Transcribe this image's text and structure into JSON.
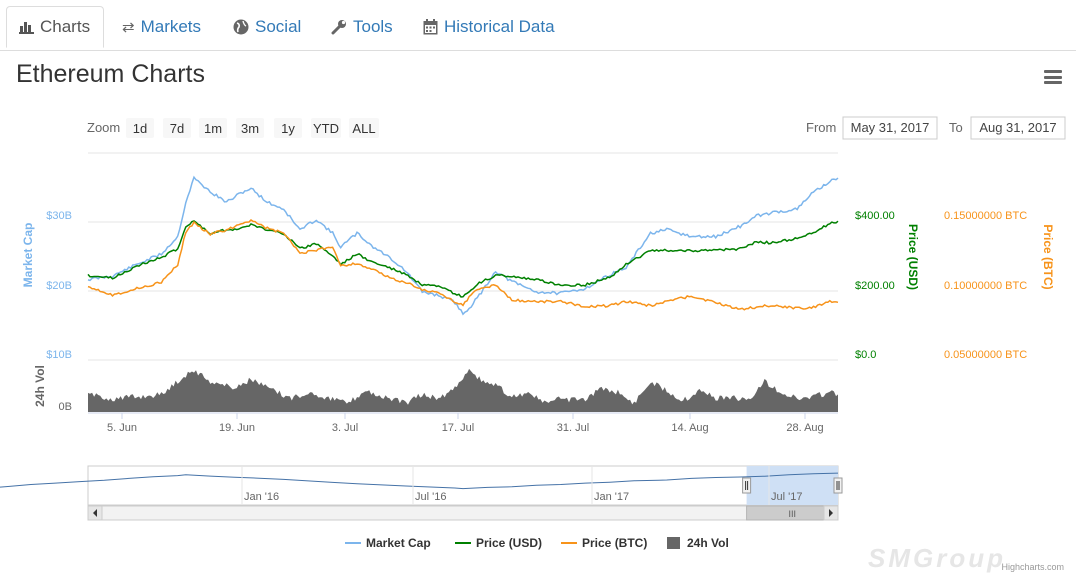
{
  "tabs": [
    {
      "label": "Charts",
      "icon": "bar-chart-icon",
      "active": true
    },
    {
      "label": "Markets",
      "icon": "exchange-icon",
      "active": false
    },
    {
      "label": "Social",
      "icon": "globe-icon",
      "active": false
    },
    {
      "label": "Tools",
      "icon": "wrench-icon",
      "active": false
    },
    {
      "label": "Historical Data",
      "icon": "calendar-icon",
      "active": false
    }
  ],
  "page_title": "Ethereum Charts",
  "menu_icon": "hamburger-menu-icon",
  "range_selector": {
    "zoom_label": "Zoom",
    "buttons": [
      "1d",
      "7d",
      "1m",
      "3m",
      "1y",
      "YTD",
      "ALL"
    ],
    "from_label": "From",
    "from_value": "May 31, 2017",
    "to_label": "To",
    "to_value": "Aug 31, 2017"
  },
  "credits": "Highcharts.com",
  "watermark": "SMGroup",
  "colors": {
    "market_cap": "#7cb5ec",
    "price_usd": "#008000",
    "price_btc": "#f7931a",
    "volume": "#666666",
    "tab_link": "#337ab7",
    "navigator_mask": "#cfe0f5"
  },
  "chart_data": {
    "type": "line",
    "x_range": [
      "2017-05-31",
      "2017-08-31"
    ],
    "x_ticks": [
      "5. Jun",
      "19. Jun",
      "3. Jul",
      "17. Jul",
      "31. Jul",
      "14. Aug",
      "28. Aug"
    ],
    "grid": true,
    "legend_position": "bottom-center",
    "axes": {
      "market_cap": {
        "title": "Market Cap",
        "ticks": [
          "$10B",
          "$20B",
          "$30B"
        ],
        "range": [
          10,
          32
        ]
      },
      "price_usd": {
        "title": "Price (USD)",
        "ticks": [
          "$0.0",
          "$200.00",
          "$400.00"
        ],
        "range": [
          0,
          440
        ]
      },
      "price_btc": {
        "title": "Price (BTC)",
        "ticks": [
          "0.05000000 BTC",
          "0.10000000 BTC",
          "0.15000000 BTC"
        ],
        "range": [
          0.05,
          0.16
        ]
      },
      "volume": {
        "title": "24h Vol",
        "ticks": [
          "0B"
        ]
      }
    },
    "series": [
      {
        "name": "Market Cap",
        "unit": "B USD",
        "points": [
          [
            "2017-05-31",
            20.8
          ],
          [
            "2017-06-03",
            21.3
          ],
          [
            "2017-06-06",
            23.0
          ],
          [
            "2017-06-09",
            24.5
          ],
          [
            "2017-06-11",
            27.0
          ],
          [
            "2017-06-12",
            32.0
          ],
          [
            "2017-06-13",
            35.5
          ],
          [
            "2017-06-15",
            33.5
          ],
          [
            "2017-06-17",
            32.0
          ],
          [
            "2017-06-19",
            33.5
          ],
          [
            "2017-06-20",
            34.0
          ],
          [
            "2017-06-22",
            32.0
          ],
          [
            "2017-06-24",
            31.0
          ],
          [
            "2017-06-26",
            28.0
          ],
          [
            "2017-06-28",
            29.5
          ],
          [
            "2017-06-30",
            27.5
          ],
          [
            "2017-07-01",
            25.5
          ],
          [
            "2017-07-03",
            27.5
          ],
          [
            "2017-07-05",
            25.5
          ],
          [
            "2017-07-07",
            24.0
          ],
          [
            "2017-07-09",
            22.0
          ],
          [
            "2017-07-11",
            19.0
          ],
          [
            "2017-07-13",
            18.5
          ],
          [
            "2017-07-15",
            17.5
          ],
          [
            "2017-07-16",
            15.8
          ],
          [
            "2017-07-17",
            17.0
          ],
          [
            "2017-07-18",
            18.5
          ],
          [
            "2017-07-20",
            22.0
          ],
          [
            "2017-07-22",
            20.5
          ],
          [
            "2017-07-25",
            19.0
          ],
          [
            "2017-07-28",
            18.8
          ],
          [
            "2017-07-31",
            19.5
          ],
          [
            "2017-08-03",
            21.5
          ],
          [
            "2017-08-05",
            22.5
          ],
          [
            "2017-08-08",
            27.5
          ],
          [
            "2017-08-10",
            28.0
          ],
          [
            "2017-08-13",
            27.0
          ],
          [
            "2017-08-16",
            27.0
          ],
          [
            "2017-08-19",
            28.5
          ],
          [
            "2017-08-21",
            30.0
          ],
          [
            "2017-08-23",
            30.5
          ],
          [
            "2017-08-26",
            31.0
          ],
          [
            "2017-08-28",
            33.5
          ],
          [
            "2017-08-30",
            35.0
          ],
          [
            "2017-08-31",
            35.5
          ]
        ]
      },
      {
        "name": "Price (USD)",
        "unit": "USD",
        "points": [
          [
            "2017-05-31",
            228
          ],
          [
            "2017-06-03",
            220
          ],
          [
            "2017-06-06",
            255
          ],
          [
            "2017-06-09",
            280
          ],
          [
            "2017-06-11",
            305
          ],
          [
            "2017-06-12",
            370
          ],
          [
            "2017-06-13",
            385
          ],
          [
            "2017-06-15",
            350
          ],
          [
            "2017-06-17",
            360
          ],
          [
            "2017-06-19",
            365
          ],
          [
            "2017-06-20",
            375
          ],
          [
            "2017-06-22",
            360
          ],
          [
            "2017-06-24",
            350
          ],
          [
            "2017-06-26",
            305
          ],
          [
            "2017-06-28",
            320
          ],
          [
            "2017-06-30",
            285
          ],
          [
            "2017-07-01",
            260
          ],
          [
            "2017-07-03",
            290
          ],
          [
            "2017-07-05",
            265
          ],
          [
            "2017-07-07",
            250
          ],
          [
            "2017-07-09",
            230
          ],
          [
            "2017-07-11",
            200
          ],
          [
            "2017-07-13",
            195
          ],
          [
            "2017-07-15",
            175
          ],
          [
            "2017-07-16",
            165
          ],
          [
            "2017-07-17",
            185
          ],
          [
            "2017-07-18",
            205
          ],
          [
            "2017-07-20",
            228
          ],
          [
            "2017-07-22",
            225
          ],
          [
            "2017-07-25",
            215
          ],
          [
            "2017-07-28",
            200
          ],
          [
            "2017-07-31",
            200
          ],
          [
            "2017-08-03",
            222
          ],
          [
            "2017-08-05",
            260
          ],
          [
            "2017-08-08",
            300
          ],
          [
            "2017-08-10",
            300
          ],
          [
            "2017-08-13",
            300
          ],
          [
            "2017-08-16",
            300
          ],
          [
            "2017-08-19",
            305
          ],
          [
            "2017-08-21",
            325
          ],
          [
            "2017-08-23",
            322
          ],
          [
            "2017-08-26",
            335
          ],
          [
            "2017-08-28",
            350
          ],
          [
            "2017-08-30",
            380
          ],
          [
            "2017-08-31",
            385
          ]
        ]
      },
      {
        "name": "Price (BTC)",
        "unit": "BTC",
        "points": [
          [
            "2017-05-31",
            0.0992
          ],
          [
            "2017-06-03",
            0.0928
          ],
          [
            "2017-06-06",
            0.0974
          ],
          [
            "2017-06-09",
            0.102
          ],
          [
            "2017-06-11",
            0.1145
          ],
          [
            "2017-06-12",
            0.1385
          ],
          [
            "2017-06-13",
            0.145
          ],
          [
            "2017-06-15",
            0.137
          ],
          [
            "2017-06-17",
            0.1398
          ],
          [
            "2017-06-19",
            0.145
          ],
          [
            "2017-06-20",
            0.147
          ],
          [
            "2017-06-22",
            0.141
          ],
          [
            "2017-06-24",
            0.1375
          ],
          [
            "2017-06-26",
            0.123
          ],
          [
            "2017-06-28",
            0.125
          ],
          [
            "2017-06-30",
            0.128
          ],
          [
            "2017-07-01",
            0.114
          ],
          [
            "2017-07-03",
            0.1155
          ],
          [
            "2017-07-05",
            0.111
          ],
          [
            "2017-07-07",
            0.105
          ],
          [
            "2017-07-09",
            0.102
          ],
          [
            "2017-07-11",
            0.0965
          ],
          [
            "2017-07-13",
            0.094
          ],
          [
            "2017-07-15",
            0.088
          ],
          [
            "2017-07-16",
            0.0855
          ],
          [
            "2017-07-17",
            0.093
          ],
          [
            "2017-07-18",
            0.097
          ],
          [
            "2017-07-20",
            0.1
          ],
          [
            "2017-07-22",
            0.089
          ],
          [
            "2017-07-25",
            0.088
          ],
          [
            "2017-07-28",
            0.088
          ],
          [
            "2017-07-31",
            0.0845
          ],
          [
            "2017-08-03",
            0.085
          ],
          [
            "2017-08-05",
            0.088
          ],
          [
            "2017-08-08",
            0.085
          ],
          [
            "2017-08-10",
            0.088
          ],
          [
            "2017-08-13",
            0.092
          ],
          [
            "2017-08-16",
            0.087
          ],
          [
            "2017-08-19",
            0.0825
          ],
          [
            "2017-08-21",
            0.084
          ],
          [
            "2017-08-23",
            0.0855
          ],
          [
            "2017-08-26",
            0.083
          ],
          [
            "2017-08-28",
            0.084
          ],
          [
            "2017-08-30",
            0.088
          ],
          [
            "2017-08-31",
            0.0875
          ]
        ]
      },
      {
        "name": "24h Vol",
        "unit": "relative",
        "points": [
          [
            "2017-05-31",
            0.4
          ],
          [
            "2017-06-03",
            0.3
          ],
          [
            "2017-06-06",
            0.35
          ],
          [
            "2017-06-09",
            0.4
          ],
          [
            "2017-06-12",
            0.85
          ],
          [
            "2017-06-13",
            0.95
          ],
          [
            "2017-06-15",
            0.7
          ],
          [
            "2017-06-18",
            0.55
          ],
          [
            "2017-06-20",
            0.75
          ],
          [
            "2017-06-22",
            0.55
          ],
          [
            "2017-06-25",
            0.3
          ],
          [
            "2017-06-27",
            0.45
          ],
          [
            "2017-06-29",
            0.35
          ],
          [
            "2017-07-02",
            0.2
          ],
          [
            "2017-07-04",
            0.5
          ],
          [
            "2017-07-06",
            0.35
          ],
          [
            "2017-07-09",
            0.2
          ],
          [
            "2017-07-11",
            0.4
          ],
          [
            "2017-07-13",
            0.3
          ],
          [
            "2017-07-15",
            0.55
          ],
          [
            "2017-07-16",
            0.8
          ],
          [
            "2017-07-17",
            0.95
          ],
          [
            "2017-07-18",
            0.75
          ],
          [
            "2017-07-20",
            0.6
          ],
          [
            "2017-07-22",
            0.35
          ],
          [
            "2017-07-24",
            0.45
          ],
          [
            "2017-07-26",
            0.2
          ],
          [
            "2017-07-28",
            0.3
          ],
          [
            "2017-07-31",
            0.25
          ],
          [
            "2017-08-02",
            0.55
          ],
          [
            "2017-08-04",
            0.45
          ],
          [
            "2017-08-06",
            0.2
          ],
          [
            "2017-08-08",
            0.7
          ],
          [
            "2017-08-10",
            0.5
          ],
          [
            "2017-08-12",
            0.25
          ],
          [
            "2017-08-14",
            0.5
          ],
          [
            "2017-08-16",
            0.3
          ],
          [
            "2017-08-18",
            0.35
          ],
          [
            "2017-08-20",
            0.25
          ],
          [
            "2017-08-22",
            0.7
          ],
          [
            "2017-08-24",
            0.45
          ],
          [
            "2017-08-26",
            0.3
          ],
          [
            "2017-08-28",
            0.35
          ],
          [
            "2017-08-30",
            0.45
          ],
          [
            "2017-08-31",
            0.4
          ]
        ]
      }
    ],
    "navigator": {
      "x_ticks": [
        "Jan '16",
        "Jul '16",
        "Jan '17",
        "Jul '17"
      ],
      "range": [
        "2015-08-07",
        "2017-08-31"
      ],
      "selected": [
        "2017-05-31",
        "2017-08-31"
      ],
      "points": [
        [
          "2015-08-07",
          0.2
        ],
        [
          "2016-01-01",
          0.2
        ],
        [
          "2016-03-01",
          1.0
        ],
        [
          "2016-06-15",
          1.5
        ],
        [
          "2016-09-01",
          1.0
        ],
        [
          "2017-01-01",
          1.0
        ],
        [
          "2017-03-15",
          4.0
        ],
        [
          "2017-04-15",
          8.0
        ],
        [
          "2017-05-15",
          15.0
        ],
        [
          "2017-06-12",
          33.0
        ],
        [
          "2017-07-16",
          16.0
        ],
        [
          "2017-08-10",
          27.0
        ],
        [
          "2017-08-31",
          35.0
        ]
      ]
    }
  }
}
